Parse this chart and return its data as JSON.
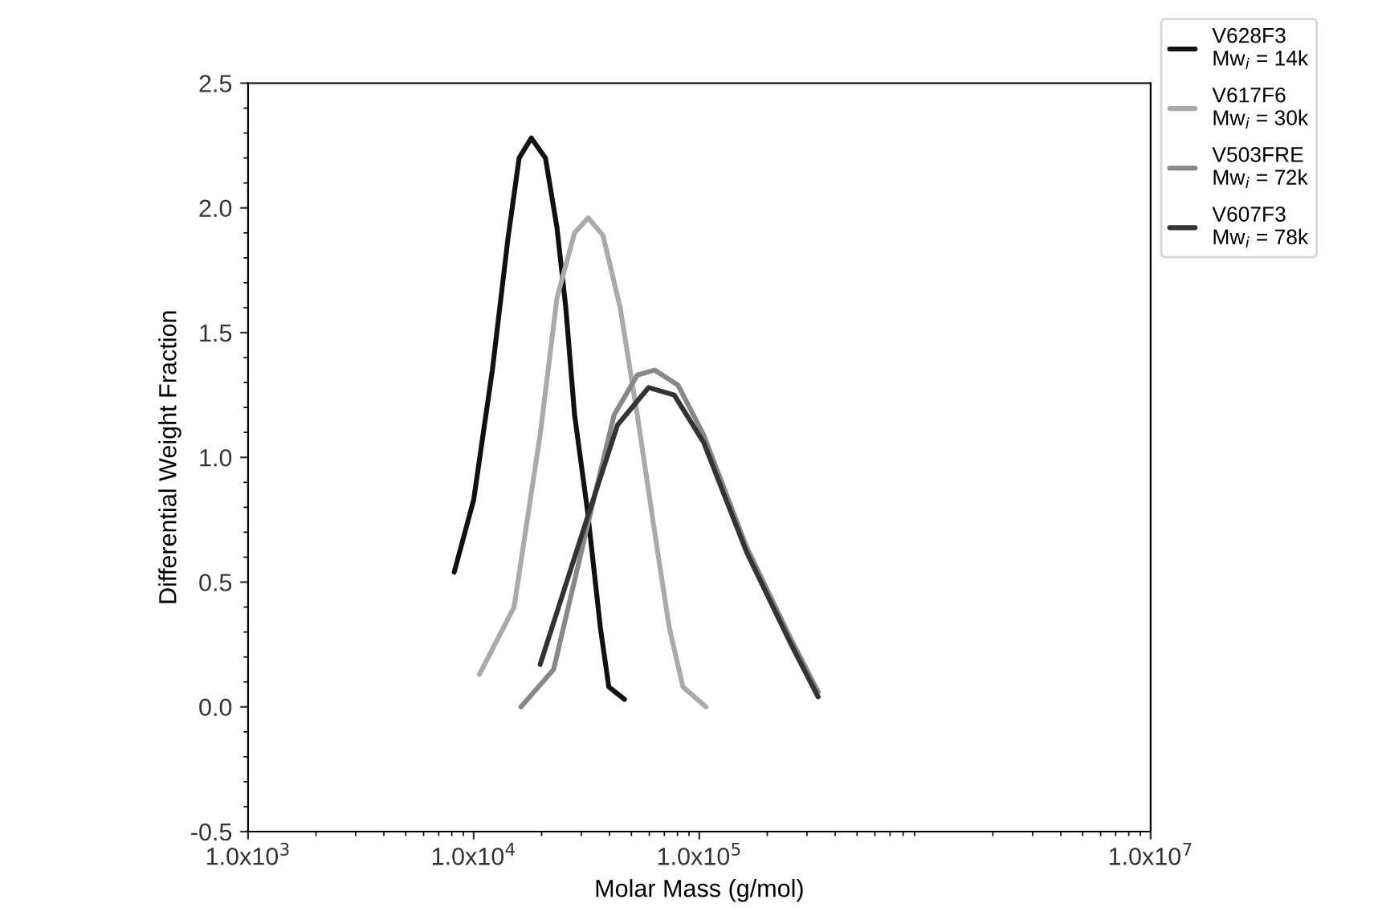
{
  "chart_data": {
    "type": "line",
    "xlabel": "Molar Mass (g/mol)",
    "ylabel": "Differential Weight Fraction",
    "log": "x",
    "xlim": [
      1000,
      10000000
    ],
    "xticks": [
      {
        "value": 1000,
        "label": "1.0x10$^{3}$"
      },
      {
        "value": 10000,
        "label": "1.0x10$^{4}$"
      },
      {
        "value": 100000,
        "label": "1.0x10$^{5}$"
      },
      {
        "value": 10000000,
        "label": "1.0x10$^{7}$"
      }
    ],
    "ylim": [
      -0.5,
      2.5
    ],
    "yticks": [
      {
        "value": -0.5,
        "label": "-0.5"
      },
      {
        "value": 0,
        "label": "0.0"
      },
      {
        "value": 0.5,
        "label": "0.5"
      },
      {
        "value": 1,
        "label": "1.0"
      },
      {
        "value": 1.5,
        "label": "1.5"
      },
      {
        "value": 2,
        "label": "2.0"
      },
      {
        "value": 2.5,
        "label": "2.5"
      }
    ],
    "grid": false,
    "legend": "top right",
    "marker": "none",
    "line_style": "solid",
    "series": [
      {
        "name": "V628F3\nMw$_{i}$ = 14k",
        "color": "#111111",
        "x": [
          8200,
          10000,
          12100,
          14200,
          15900,
          18000,
          20800,
          23400,
          25600,
          28000,
          31900,
          36400,
          39700,
          46600
        ],
        "values": [
          0.54,
          0.83,
          1.35,
          1.88,
          2.2,
          2.28,
          2.2,
          1.92,
          1.6,
          1.17,
          0.79,
          0.32,
          0.08,
          0.03
        ]
      },
      {
        "name": "V617F6\nMw$_{i}$ = 30k",
        "color": "#aaaaaa",
        "x": [
          10600,
          15100,
          19700,
          23400,
          28000,
          32200,
          37400,
          44600,
          53100,
          63400,
          73500,
          84600,
          107000
        ],
        "values": [
          0.13,
          0.4,
          1.09,
          1.64,
          1.9,
          1.96,
          1.89,
          1.6,
          1.17,
          0.7,
          0.32,
          0.08,
          0.0
        ]
      },
      {
        "name": "V503FRE\nMw$_{i}$ = 72k",
        "color": "#888888",
        "x": [
          16200,
          22600,
          32200,
          41900,
          53100,
          63400,
          80400,
          104500,
          162000,
          252000,
          336000
        ],
        "values": [
          0.0,
          0.15,
          0.74,
          1.17,
          1.33,
          1.35,
          1.29,
          1.09,
          0.64,
          0.28,
          0.06
        ]
      },
      {
        "name": "V607F3\nMw$_{i}$ = 78k",
        "color": "#333333",
        "x": [
          19700,
          32200,
          43400,
          59600,
          77400,
          104500,
          162000,
          252000,
          336000
        ],
        "values": [
          0.17,
          0.77,
          1.13,
          1.28,
          1.25,
          1.06,
          0.62,
          0.26,
          0.04
        ]
      }
    ]
  }
}
